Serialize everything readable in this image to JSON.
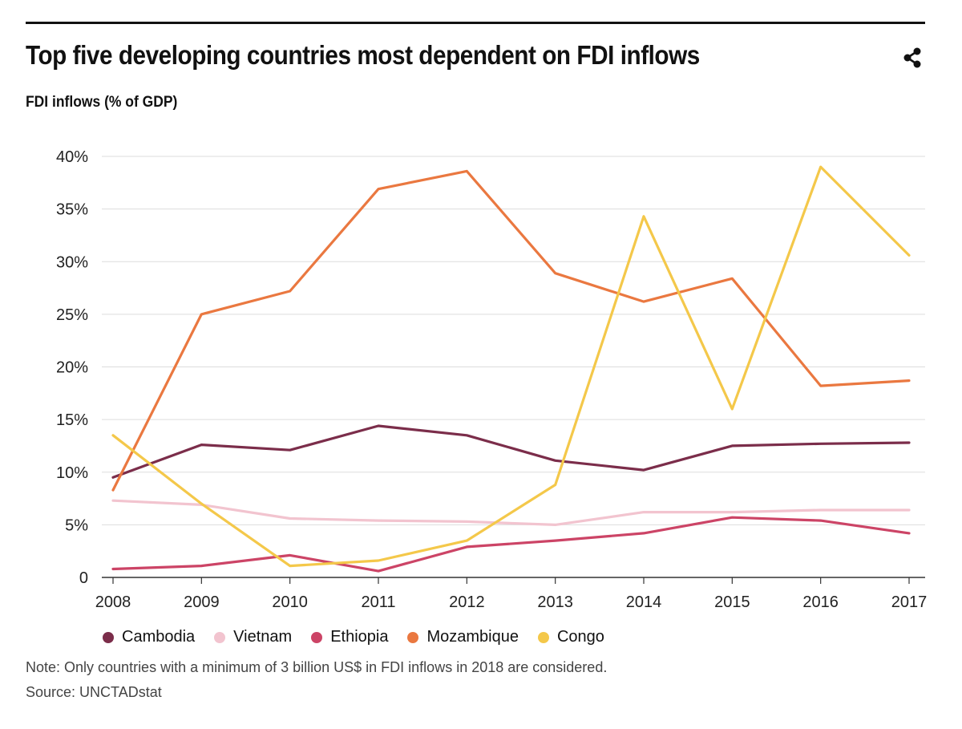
{
  "header": {
    "title": "Top five developing countries most dependent on FDI inflows",
    "subtitle": "FDI inflows (% of GDP)",
    "share_icon": "share-icon"
  },
  "footer": {
    "note": "Note: Only countries with a minimum of 3 billion US$ in FDI inflows in 2018 are considered.",
    "source": "Source: UNCTADstat"
  },
  "chart_data": {
    "type": "line",
    "title": "Top five developing countries most dependent on FDI inflows",
    "ylabel": "FDI inflows (% of GDP)",
    "xlabel": "",
    "x": [
      "2008",
      "2009",
      "2010",
      "2011",
      "2012",
      "2013",
      "2014",
      "2015",
      "2016",
      "2017"
    ],
    "ylim": [
      0,
      40
    ],
    "yticks": [
      0,
      5,
      10,
      15,
      20,
      25,
      30,
      35,
      40
    ],
    "ytick_labels": [
      "0",
      "5%",
      "10%",
      "15%",
      "20%",
      "25%",
      "30%",
      "35%",
      "40%"
    ],
    "grid": true,
    "legend": "bottom",
    "series": [
      {
        "name": "Cambodia",
        "color": "#7b2d4a",
        "values": [
          9.5,
          12.6,
          12.1,
          14.4,
          13.5,
          11.1,
          10.2,
          12.5,
          12.7,
          12.8
        ]
      },
      {
        "name": "Vietnam",
        "color": "#f2c4cf",
        "values": [
          7.3,
          6.9,
          5.6,
          5.4,
          5.3,
          5.0,
          6.2,
          6.2,
          6.4,
          6.4
        ]
      },
      {
        "name": "Ethiopia",
        "color": "#cc4466",
        "values": [
          0.8,
          1.1,
          2.1,
          0.6,
          2.9,
          3.5,
          4.2,
          5.7,
          5.4,
          4.2
        ]
      },
      {
        "name": "Mozambique",
        "color": "#ea7840",
        "values": [
          8.3,
          25.0,
          27.2,
          36.9,
          38.6,
          28.9,
          26.2,
          28.4,
          18.2,
          18.7
        ]
      },
      {
        "name": "Congo",
        "color": "#f4c84a",
        "values": [
          13.5,
          7.0,
          1.1,
          1.6,
          3.5,
          8.8,
          34.3,
          16.0,
          39.0,
          30.6
        ]
      }
    ]
  }
}
